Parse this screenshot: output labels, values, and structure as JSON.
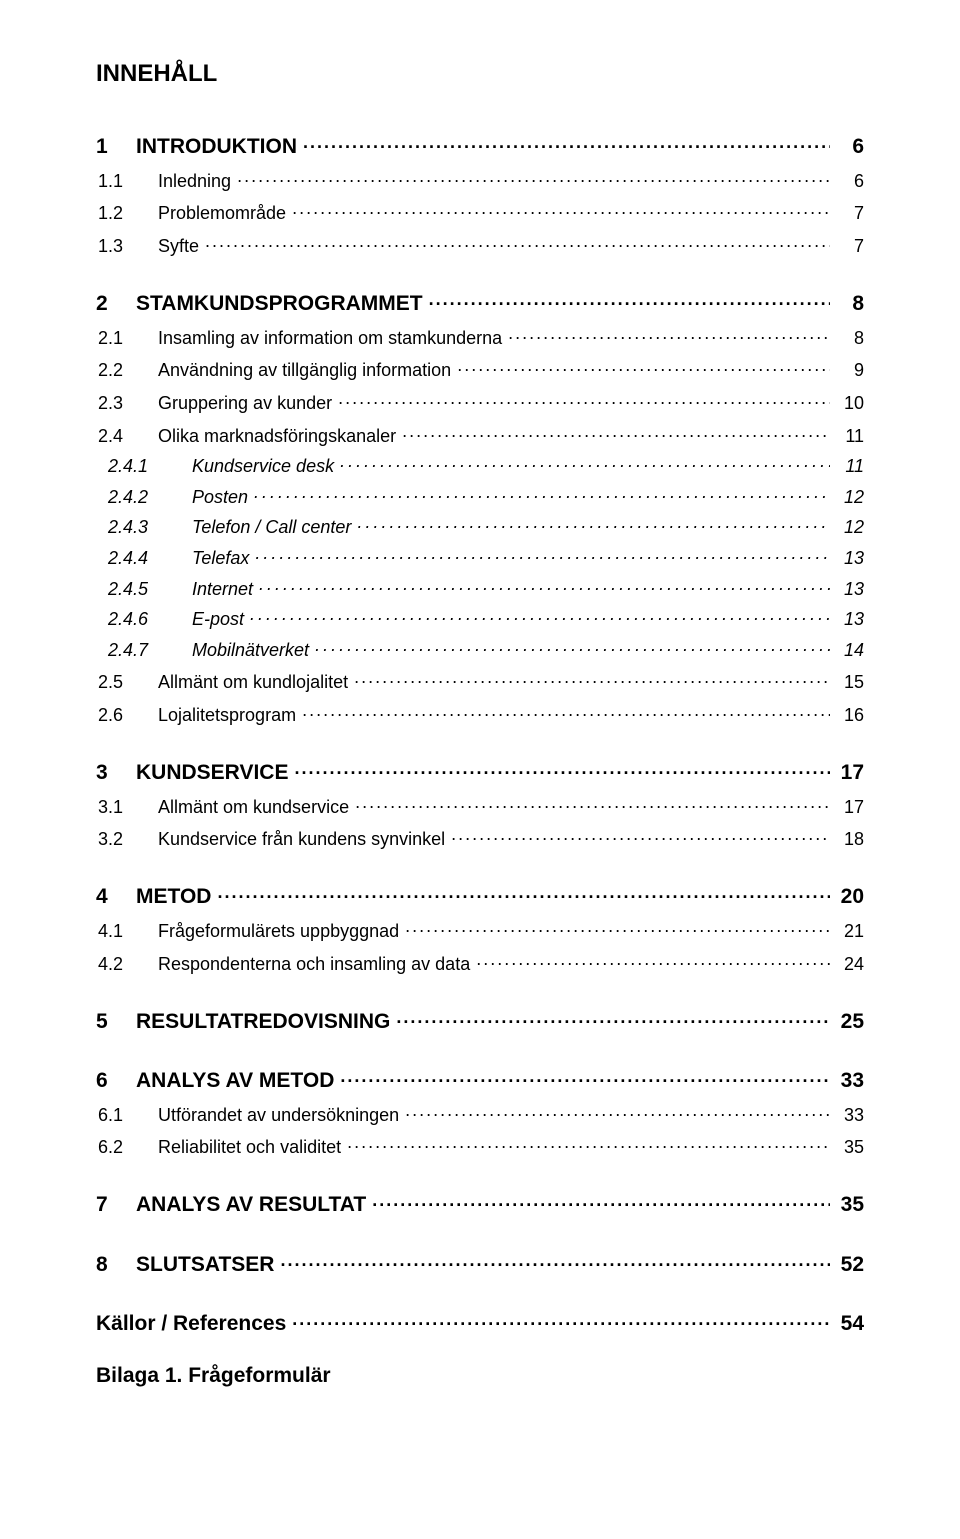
{
  "title": "INNEHÅLL",
  "appendix": "Bilaga 1. Frågeformulär",
  "entries": [
    {
      "level": 1,
      "num": "1",
      "label": "INTRODUKTION",
      "page": "6"
    },
    {
      "level": 2,
      "num": "1.1",
      "label": "Inledning",
      "page": "6"
    },
    {
      "level": 2,
      "num": "1.2",
      "label": "Problemområde",
      "page": "7"
    },
    {
      "level": 2,
      "num": "1.3",
      "label": "Syfte",
      "page": "7"
    },
    {
      "level": 1,
      "num": "2",
      "label": "STAMKUNDSPROGRAMMET",
      "page": "8"
    },
    {
      "level": 2,
      "num": "2.1",
      "label": "Insamling av information om stamkunderna",
      "page": "8"
    },
    {
      "level": 2,
      "num": "2.2",
      "label": "Användning av tillgänglig information",
      "page": "9"
    },
    {
      "level": 2,
      "num": "2.3",
      "label": "Gruppering av kunder",
      "page": "10"
    },
    {
      "level": 2,
      "num": "2.4",
      "label": "Olika marknadsföringskanaler",
      "page": "11"
    },
    {
      "level": 3,
      "num": "2.4.1",
      "label": "Kundservice desk",
      "page": "11"
    },
    {
      "level": 3,
      "num": "2.4.2",
      "label": "Posten",
      "page": "12"
    },
    {
      "level": 3,
      "num": "2.4.3",
      "label": "Telefon / Call center",
      "page": "12"
    },
    {
      "level": 3,
      "num": "2.4.4",
      "label": "Telefax",
      "page": "13"
    },
    {
      "level": 3,
      "num": "2.4.5",
      "label": "Internet",
      "page": "13"
    },
    {
      "level": 3,
      "num": "2.4.6",
      "label": "E-post",
      "page": "13"
    },
    {
      "level": 3,
      "num": "2.4.7",
      "label": "Mobilnätverket",
      "page": "14"
    },
    {
      "level": 2,
      "num": "2.5",
      "label": "Allmänt om kundlojalitet",
      "page": "15"
    },
    {
      "level": 2,
      "num": "2.6",
      "label": "Lojalitetsprogram",
      "page": "16"
    },
    {
      "level": 1,
      "num": "3",
      "label": "KUNDSERVICE",
      "page": "17"
    },
    {
      "level": 2,
      "num": "3.1",
      "label": "Allmänt om kundservice",
      "page": "17"
    },
    {
      "level": 2,
      "num": "3.2",
      "label": "Kundservice från kundens synvinkel",
      "page": "18"
    },
    {
      "level": 1,
      "num": "4",
      "label": "METOD",
      "page": "20"
    },
    {
      "level": 2,
      "num": "4.1",
      "label": "Frågeformulärets uppbyggnad",
      "page": "21"
    },
    {
      "level": 2,
      "num": "4.2",
      "label": "Respondenterna och insamling av data",
      "page": "24"
    },
    {
      "level": 1,
      "num": "5",
      "label": "RESULTATREDOVISNING",
      "page": "25"
    },
    {
      "level": 1,
      "num": "6",
      "label": "ANALYS AV METOD",
      "page": "33"
    },
    {
      "level": 2,
      "num": "6.1",
      "label": "Utförandet av undersökningen",
      "page": "33"
    },
    {
      "level": 2,
      "num": "6.2",
      "label": "Reliabilitet och validitet",
      "page": "35"
    },
    {
      "level": 1,
      "num": "7",
      "label": "ANALYS AV RESULTAT",
      "page": "35"
    },
    {
      "level": 1,
      "num": "8",
      "label": "SLUTSATSER",
      "page": "52"
    },
    {
      "level": 0,
      "num": "",
      "label": "Källor / References",
      "page": "54"
    }
  ]
}
